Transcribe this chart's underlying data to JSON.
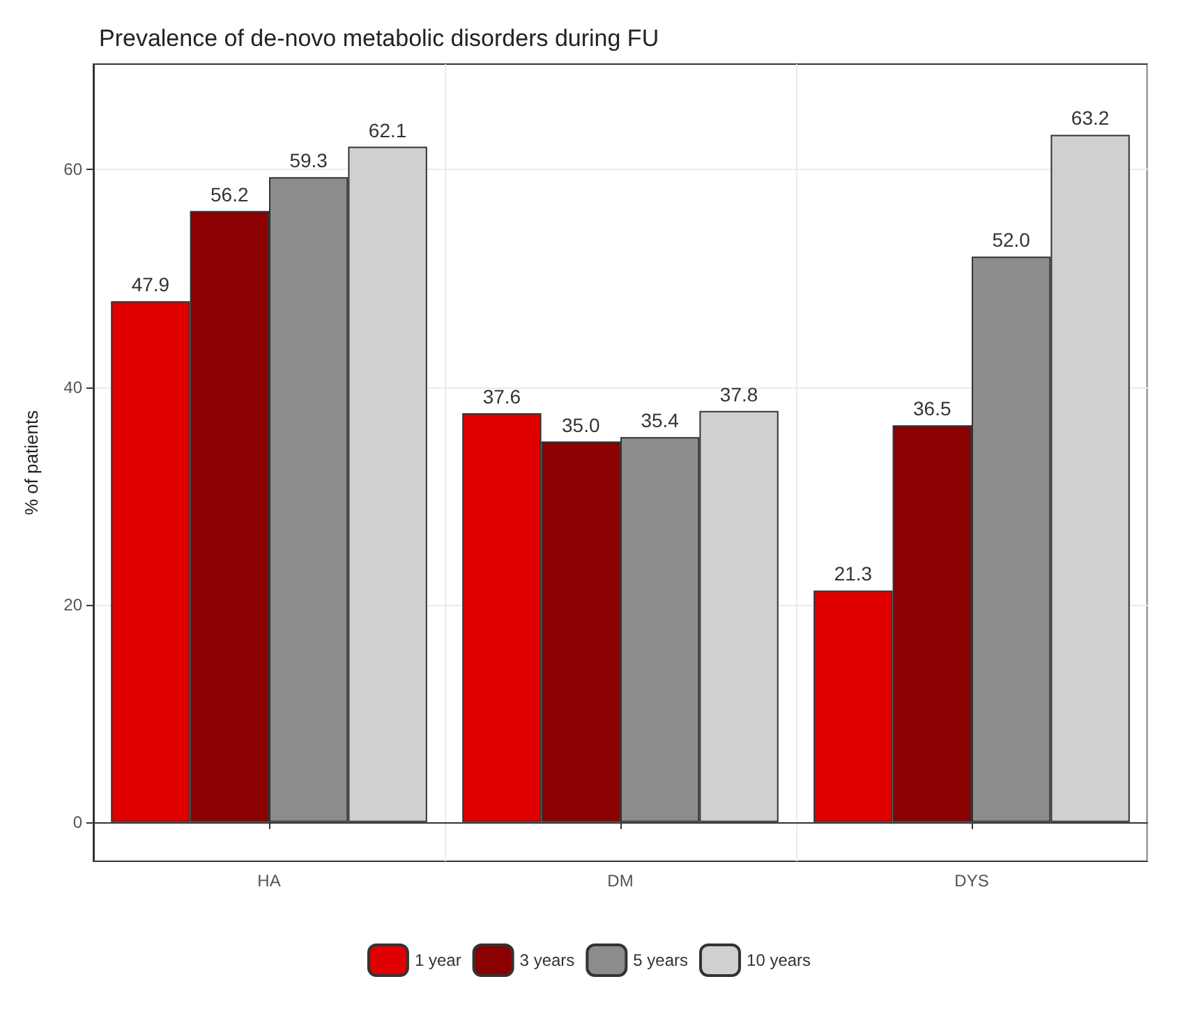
{
  "chart_data": {
    "type": "bar",
    "title": "Prevalence of de-novo metabolic disorders during FU",
    "ylabel": "% of patients",
    "categories": [
      "HA",
      "DM",
      "DYS"
    ],
    "series": [
      {
        "name": "1 year",
        "color": "#e00000",
        "values": [
          47.9,
          37.6,
          21.3
        ],
        "value_labels": [
          "47.9",
          "37.6",
          "21.3"
        ]
      },
      {
        "name": "3 years",
        "color": "#8b0000",
        "values": [
          56.2,
          35.0,
          36.5
        ],
        "value_labels": [
          "56.2",
          "35.0",
          "36.5"
        ]
      },
      {
        "name": "5 years",
        "color": "#8c8c8c",
        "values": [
          59.3,
          35.4,
          52.0
        ],
        "value_labels": [
          "59.3",
          "35.4",
          "52.0"
        ]
      },
      {
        "name": "10 years",
        "color": "#d0d0d0",
        "values": [
          62.1,
          37.8,
          63.2
        ],
        "value_labels": [
          "62.1",
          "37.8",
          "63.2"
        ]
      }
    ],
    "ylim": [
      -3.6,
      69.7
    ],
    "yticks": [
      0,
      20,
      40,
      60
    ],
    "grid": true,
    "legend": "bottom"
  }
}
